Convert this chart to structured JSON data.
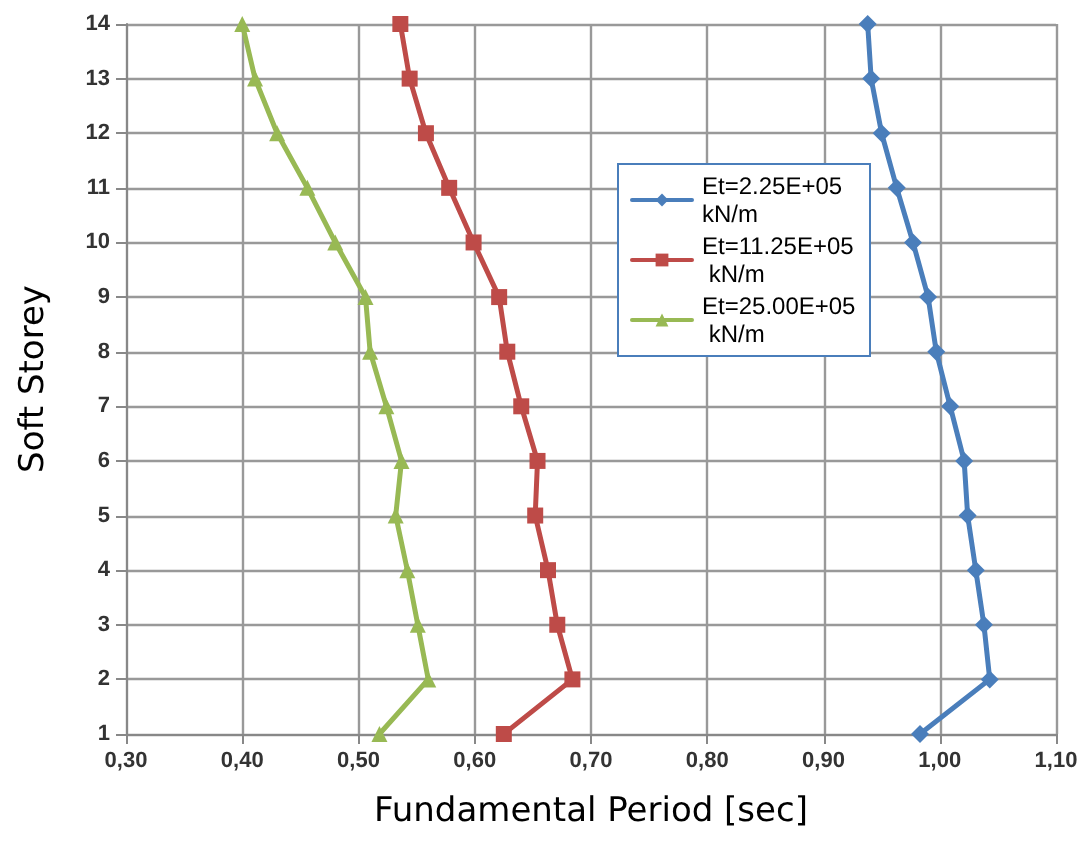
{
  "chart_data": {
    "type": "line",
    "xlabel": "Fundamental Period [sec]",
    "ylabel": "Soft Storey",
    "series": [
      {
        "name": "Et=2.25E+05 kN/m",
        "color": "#4a7ebb",
        "marker": "diamond",
        "x": [
          0.983,
          1.043,
          1.038,
          1.031,
          1.024,
          1.021,
          1.009,
          0.997,
          0.99,
          0.977,
          0.963,
          0.95,
          0.941,
          0.938
        ],
        "values": [
          1,
          2,
          3,
          4,
          5,
          6,
          7,
          8,
          9,
          10,
          11,
          12,
          13,
          14
        ]
      },
      {
        "name": "Et=11.25E+05 kN/m",
        "color": "#be4b48",
        "marker": "square",
        "x": [
          0.625,
          0.684,
          0.671,
          0.663,
          0.652,
          0.654,
          0.64,
          0.628,
          0.621,
          0.599,
          0.578,
          0.558,
          0.544,
          0.536
        ],
        "values": [
          1,
          2,
          3,
          4,
          5,
          6,
          7,
          8,
          9,
          10,
          11,
          12,
          13,
          14
        ]
      },
      {
        "name": "Et=25.00E+05 kN/m",
        "color": "#98b954",
        "marker": "triangle",
        "x": [
          0.518,
          0.56,
          0.551,
          0.542,
          0.532,
          0.537,
          0.524,
          0.51,
          0.506,
          0.48,
          0.456,
          0.43,
          0.411,
          0.4
        ],
        "values": [
          1,
          2,
          3,
          4,
          5,
          6,
          7,
          8,
          9,
          10,
          11,
          12,
          13,
          14
        ]
      }
    ],
    "xlim": [
      0.3,
      1.1
    ],
    "xticks": [
      {
        "value": 0.3,
        "label": "0,30"
      },
      {
        "value": 0.4,
        "label": "0,40"
      },
      {
        "value": 0.5,
        "label": "0,50"
      },
      {
        "value": 0.6,
        "label": "0,60"
      },
      {
        "value": 0.7,
        "label": "0,70"
      },
      {
        "value": 0.8,
        "label": "0,80"
      },
      {
        "value": 0.9,
        "label": "0,90"
      },
      {
        "value": 1.0,
        "label": "1,00"
      },
      {
        "value": 1.1,
        "label": "1,10"
      }
    ],
    "ylim": [
      1,
      14
    ],
    "yticks": [
      1,
      2,
      3,
      4,
      5,
      6,
      7,
      8,
      9,
      10,
      11,
      12,
      13,
      14
    ],
    "grid": true,
    "legend": "right",
    "line_style": "solid"
  }
}
